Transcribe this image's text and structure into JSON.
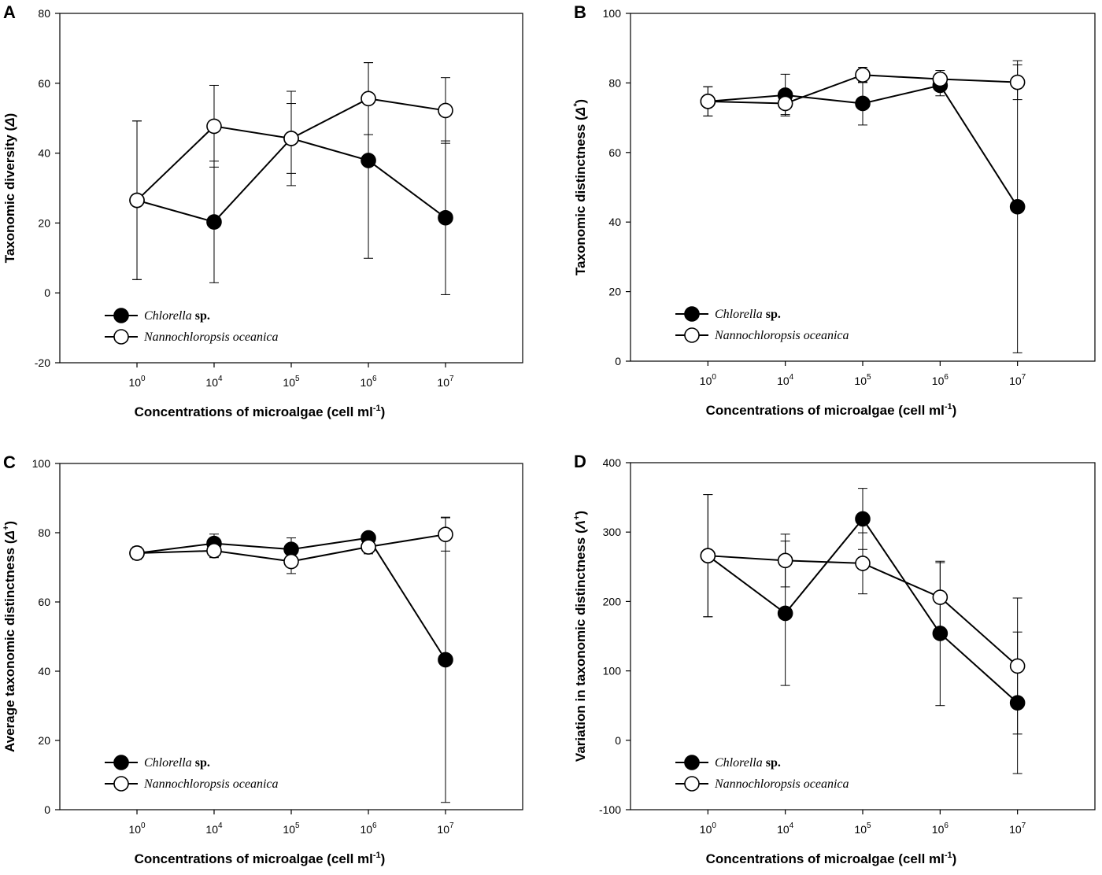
{
  "chart_data": [
    {
      "panel": "A",
      "type": "line",
      "ylabel": "Taxonomic diversity (",
      "ylabel_symbol": "Δ",
      "ylabel_sup": "",
      "ylabel_end": ")",
      "xlabel": "Concentrations of microalgae (cell ml",
      "xlabel_sup": "-1",
      "xlabel_end": ")",
      "ylim": [
        -20,
        80
      ],
      "yticks": [
        -20,
        0,
        20,
        40,
        60,
        80
      ],
      "categories": [
        {
          "base": "10",
          "exp": "0"
        },
        {
          "base": "10",
          "exp": "4"
        },
        {
          "base": "10",
          "exp": "5"
        },
        {
          "base": "10",
          "exp": "6"
        },
        {
          "base": "10",
          "exp": "7"
        }
      ],
      "series": [
        {
          "name": "Chlorella",
          "name_suffix": "sp.",
          "marker": "filled",
          "values": [
            26.5,
            20.3,
            44.2,
            37.9,
            21.5
          ],
          "errors": [
            22.7,
            17.4,
            10,
            28,
            22
          ]
        },
        {
          "name": "Nannochloropsis oceanica",
          "name_suffix": "",
          "marker": "open",
          "values": [
            26.5,
            47.7,
            44.2,
            55.6,
            52.2
          ],
          "errors": [
            22.7,
            11.7,
            13.5,
            10.3,
            9.4
          ]
        }
      ]
    },
    {
      "panel": "B",
      "type": "line",
      "ylabel": "Taxonomic distinctness (",
      "ylabel_symbol": "Δ",
      "ylabel_sup": "*",
      "ylabel_end": ")",
      "xlabel": "Concentrations of microalgae (cell ml",
      "xlabel_sup": "-1",
      "xlabel_end": ")",
      "ylim": [
        0,
        100
      ],
      "yticks": [
        0,
        20,
        40,
        60,
        80,
        100
      ],
      "categories": [
        {
          "base": "10",
          "exp": "0"
        },
        {
          "base": "10",
          "exp": "4"
        },
        {
          "base": "10",
          "exp": "5"
        },
        {
          "base": "10",
          "exp": "6"
        },
        {
          "base": "10",
          "exp": "7"
        }
      ],
      "series": [
        {
          "name": "Chlorella",
          "name_suffix": "sp.",
          "marker": "filled",
          "values": [
            74.7,
            76.5,
            74.1,
            79.3,
            44.4
          ],
          "errors": [
            4.2,
            6,
            6.2,
            3,
            42
          ]
        },
        {
          "name": "Nannochloropsis oceanica",
          "name_suffix": "",
          "marker": "open",
          "values": [
            74.7,
            74.1,
            82.3,
            81.1,
            80.2
          ],
          "errors": [
            4.2,
            3.2,
            2.2,
            2.5,
            5
          ]
        }
      ]
    },
    {
      "panel": "C",
      "type": "line",
      "ylabel": "Average taxonomic distinctness (",
      "ylabel_symbol": "Δ",
      "ylabel_sup": "+",
      "ylabel_end": ")",
      "xlabel": "Concentrations of microalgae (cell ml",
      "xlabel_sup": "-1",
      "xlabel_end": ")",
      "ylim": [
        0,
        100
      ],
      "yticks": [
        0,
        20,
        40,
        60,
        80,
        100
      ],
      "categories": [
        {
          "base": "10",
          "exp": "0"
        },
        {
          "base": "10",
          "exp": "4"
        },
        {
          "base": "10",
          "exp": "5"
        },
        {
          "base": "10",
          "exp": "6"
        },
        {
          "base": "10",
          "exp": "7"
        }
      ],
      "series": [
        {
          "name": "Chlorella",
          "name_suffix": "sp.",
          "marker": "filled",
          "values": [
            74.1,
            76.9,
            75.2,
            78.5,
            43.3
          ],
          "errors": [
            1.8,
            2.7,
            3.3,
            1.5,
            41.2
          ]
        },
        {
          "name": "Nannochloropsis oceanica",
          "name_suffix": "",
          "marker": "open",
          "values": [
            74.1,
            74.8,
            71.7,
            75.9,
            79.5
          ],
          "errors": [
            1.8,
            2,
            3.5,
            2,
            4.8
          ]
        }
      ]
    },
    {
      "panel": "D",
      "type": "line",
      "ylabel": "Variation in taxonomic distinctness (",
      "ylabel_symbol": "Λ",
      "ylabel_sup": "+",
      "ylabel_end": ")",
      "xlabel": "Concentrations of microalgae (cell ml",
      "xlabel_sup": "-1",
      "xlabel_end": ")",
      "ylim": [
        -100,
        400
      ],
      "yticks": [
        -100,
        0,
        100,
        200,
        300,
        400
      ],
      "categories": [
        {
          "base": "10",
          "exp": "0"
        },
        {
          "base": "10",
          "exp": "4"
        },
        {
          "base": "10",
          "exp": "5"
        },
        {
          "base": "10",
          "exp": "6"
        },
        {
          "base": "10",
          "exp": "7"
        }
      ],
      "series": [
        {
          "name": "Chlorella",
          "name_suffix": "sp.",
          "marker": "filled",
          "values": [
            266,
            183,
            319,
            154,
            54
          ],
          "errors": [
            88,
            104,
            44,
            104,
            102
          ]
        },
        {
          "name": "Nannochloropsis oceanica",
          "name_suffix": "",
          "marker": "open",
          "values": [
            266,
            259,
            255,
            206,
            107
          ],
          "errors": [
            88,
            38,
            44,
            50,
            98
          ]
        }
      ]
    }
  ]
}
